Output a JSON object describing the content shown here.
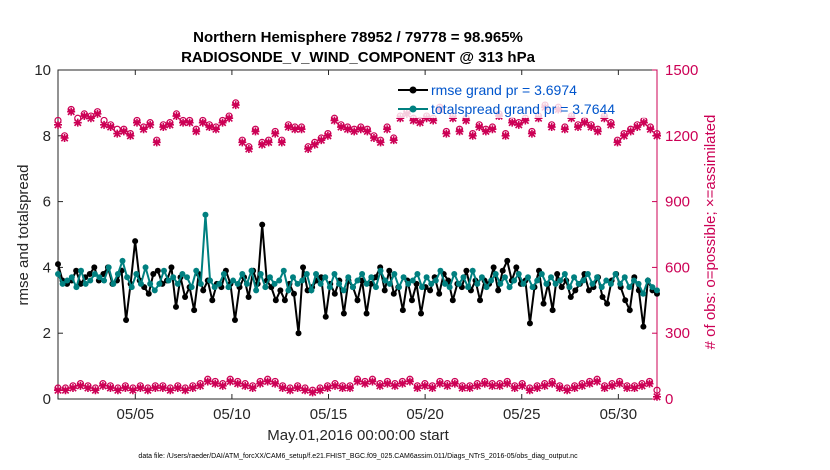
{
  "chart_data": {
    "type": "line",
    "title_line1": "Northern Hemisphere 78952 / 79778 = 98.965%",
    "title_line2": "RADIOSONDE_V_WIND_COMPONENT @ 313 hPa",
    "xlabel": "May.01,2016 00:00:00 start",
    "ylabel_left": "rmse and totalspread",
    "ylabel_right": "# of obs: o=possible; ×=assimilated",
    "xlim": [
      1,
      32
    ],
    "ylim_left": [
      0,
      10
    ],
    "ylim_right": [
      0,
      1500
    ],
    "x_ticks": [
      {
        "value": 5,
        "label": "05/05"
      },
      {
        "value": 10,
        "label": "05/10"
      },
      {
        "value": 15,
        "label": "05/15"
      },
      {
        "value": 20,
        "label": "05/20"
      },
      {
        "value": 25,
        "label": "05/25"
      },
      {
        "value": 30,
        "label": "05/30"
      }
    ],
    "y_ticks_left": [
      {
        "value": 0,
        "label": "0"
      },
      {
        "value": 2,
        "label": "2"
      },
      {
        "value": 4,
        "label": "4"
      },
      {
        "value": 6,
        "label": "6"
      },
      {
        "value": 8,
        "label": "8"
      },
      {
        "value": 10,
        "label": "10"
      }
    ],
    "y_ticks_right": [
      {
        "value": 0,
        "label": "0"
      },
      {
        "value": 300,
        "label": "300"
      },
      {
        "value": 600,
        "label": "600"
      },
      {
        "value": 900,
        "label": "900"
      },
      {
        "value": 1200,
        "label": "1200"
      },
      {
        "value": 1500,
        "label": "1500"
      }
    ],
    "legend": [
      {
        "label": "rmse grand pr = 3.6974",
        "color": "#000000"
      },
      {
        "label": "totalspread grand pr = 3.7644",
        "color": "#008080"
      }
    ],
    "rmse": [
      4.1,
      3.6,
      3.5,
      3.6,
      3.9,
      3.5,
      3.7,
      3.8,
      4.0,
      3.6,
      3.8,
      4.0,
      3.5,
      3.6,
      3.9,
      2.4,
      3.5,
      4.8,
      3.6,
      3.4,
      3.2,
      3.8,
      3.9,
      3.5,
      3.6,
      4.0,
      2.8,
      3.7,
      3.1,
      3.4,
      2.7,
      3.8,
      3.3,
      3.6,
      3.0,
      3.5,
      3.4,
      3.9,
      3.5,
      2.4,
      3.4,
      3.7,
      3.1,
      3.9,
      3.5,
      5.3,
      3.6,
      3.4,
      3.0,
      3.3,
      3.0,
      3.5,
      3.2,
      2.0,
      4.0,
      3.3,
      3.4,
      3.6,
      3.7,
      2.5,
      3.5,
      3.2,
      3.6,
      2.6,
      3.6,
      3.4,
      3.0,
      3.6,
      2.6,
      3.5,
      3.7,
      4.0,
      3.3,
      3.9,
      3.2,
      3.4,
      2.7,
      3.6,
      3.0,
      3.5,
      2.6,
      3.4,
      3.3,
      3.7,
      3.2,
      3.8,
      3.6,
      3.0,
      3.5,
      3.4,
      3.9,
      3.3,
      3.6,
      3.0,
      3.6,
      3.5,
      4.0,
      3.3,
      3.9,
      4.2,
      3.6,
      4.0,
      3.5,
      3.6,
      2.3,
      3.4,
      3.9,
      2.9,
      3.5,
      2.7,
      3.8,
      3.4,
      3.6,
      3.1,
      3.3,
      3.5,
      3.8,
      3.3,
      3.4,
      3.7,
      3.1,
      2.9,
      3.6,
      3.8,
      3.4,
      3.0,
      2.7,
      3.7,
      3.3,
      2.2,
      3.6,
      3.3,
      3.2
    ],
    "totalspread": [
      3.8,
      3.5,
      3.6,
      3.7,
      3.4,
      3.9,
      3.5,
      3.6,
      3.8,
      3.7,
      3.6,
      4.0,
      3.5,
      3.8,
      4.2,
      3.7,
      3.4,
      3.8,
      3.5,
      4.0,
      3.5,
      3.3,
      3.5,
      3.9,
      3.6,
      3.7,
      3.5,
      3.8,
      3.7,
      3.4,
      3.9,
      3.5,
      5.6,
      3.6,
      3.4,
      3.5,
      3.8,
      3.4,
      3.6,
      3.5,
      3.8,
      3.5,
      3.9,
      3.3,
      3.8,
      3.4,
      3.7,
      3.5,
      3.6,
      3.9,
      3.3,
      3.7,
      3.5,
      3.6,
      3.8,
      3.3,
      3.8,
      3.5,
      3.7,
      3.4,
      3.8,
      3.5,
      3.3,
      3.7,
      3.4,
      3.6,
      3.8,
      3.5,
      3.7,
      3.4,
      3.9,
      3.6,
      3.5,
      3.8,
      3.4,
      3.7,
      3.5,
      3.6,
      3.8,
      3.4,
      3.7,
      3.5,
      3.6,
      3.9,
      3.5,
      3.4,
      3.8,
      3.5,
      3.7,
      3.4,
      3.9,
      3.5,
      3.7,
      3.4,
      3.6,
      3.8,
      3.5,
      3.7,
      3.4,
      3.6,
      3.8,
      3.5,
      3.7,
      3.4,
      3.6,
      3.8,
      3.5,
      3.7,
      3.5,
      3.6,
      3.8,
      3.4,
      3.7,
      3.5,
      3.6,
      3.8,
      3.5,
      3.7,
      3.4,
      3.6,
      3.5,
      3.8,
      3.5,
      3.7,
      3.4,
      3.6,
      3.5,
      3.2,
      3.6,
      3.4,
      3.3
    ],
    "obs_possible_high": [
      1270,
      1200,
      1320,
      1280,
      1300,
      1290,
      1310,
      1270,
      1250,
      1230,
      1230,
      1210,
      1270,
      1240,
      1260,
      1180,
      1250,
      1260,
      1300,
      1270,
      1270,
      1230,
      1270,
      1250,
      1240,
      1270,
      1290,
      1350,
      1180,
      1150,
      1230,
      1170,
      1180,
      1220,
      1180,
      1250,
      1240,
      1240,
      1150,
      1170,
      1190,
      1210,
      1280,
      1250,
      1240,
      1230,
      1240,
      1230,
      1200,
      1180,
      1240,
      1190,
      1290,
      1310,
      1280,
      1270,
      1290,
      1280,
      1330,
      1220,
      1290,
      1230,
      1280,
      1210,
      1250,
      1230,
      1240,
      1300,
      1210,
      1270,
      1260,
      1280,
      1220,
      1290,
      1340,
      1250,
      1330,
      1240,
      1290,
      1250,
      1270,
      1250,
      1230,
      1290,
      1260,
      1180,
      1210,
      1230,
      1250,
      1270,
      1240,
      1210
    ],
    "obs_assimilated_high": [
      1250,
      1190,
      1310,
      1260,
      1290,
      1280,
      1300,
      1250,
      1240,
      1210,
      1220,
      1200,
      1260,
      1230,
      1250,
      1170,
      1240,
      1250,
      1290,
      1260,
      1260,
      1220,
      1260,
      1240,
      1230,
      1260,
      1280,
      1340,
      1170,
      1140,
      1220,
      1160,
      1170,
      1210,
      1170,
      1240,
      1230,
      1230,
      1140,
      1160,
      1180,
      1200,
      1270,
      1240,
      1230,
      1220,
      1230,
      1220,
      1190,
      1170,
      1230,
      1180,
      1280,
      1300,
      1270,
      1260,
      1280,
      1270,
      1320,
      1210,
      1280,
      1220,
      1270,
      1200,
      1240,
      1220,
      1230,
      1290,
      1200,
      1260,
      1250,
      1270,
      1210,
      1280,
      1330,
      1240,
      1320,
      1230,
      1280,
      1240,
      1260,
      1240,
      1220,
      1280,
      1250,
      1170,
      1200,
      1220,
      1240,
      1260,
      1230,
      1200
    ],
    "obs_possible_low": [
      50,
      50,
      60,
      70,
      60,
      50,
      70,
      60,
      50,
      60,
      50,
      60,
      50,
      60,
      60,
      50,
      60,
      50,
      60,
      70,
      90,
      80,
      70,
      90,
      80,
      70,
      60,
      80,
      90,
      80,
      60,
      50,
      60,
      50,
      40,
      50,
      60,
      70,
      60,
      60,
      90,
      80,
      90,
      70,
      80,
      70,
      80,
      90,
      60,
      70,
      60,
      80,
      70,
      80,
      60,
      60,
      70,
      80,
      70,
      70,
      80,
      60,
      70,
      50,
      60,
      70,
      80,
      60,
      50,
      60,
      70,
      80,
      90,
      60,
      70,
      80,
      60,
      60,
      70,
      80,
      40
    ],
    "obs_assimilated_low": [
      40,
      40,
      50,
      60,
      50,
      40,
      60,
      50,
      40,
      50,
      40,
      50,
      40,
      50,
      50,
      40,
      50,
      40,
      50,
      60,
      80,
      70,
      60,
      80,
      70,
      60,
      50,
      70,
      80,
      70,
      50,
      40,
      50,
      40,
      30,
      40,
      50,
      60,
      50,
      50,
      80,
      70,
      80,
      60,
      70,
      60,
      70,
      80,
      50,
      60,
      50,
      70,
      60,
      70,
      50,
      50,
      60,
      70,
      60,
      60,
      70,
      50,
      60,
      40,
      50,
      60,
      70,
      50,
      40,
      50,
      60,
      70,
      80,
      50,
      60,
      70,
      50,
      50,
      60,
      70,
      10
    ],
    "footnote": "data file: /Users/raeder/DAI/ATM_forcXX/CAM6_setup/f.e21.FHIST_BGC.f09_025.CAM6assim.011/Diags_NTrS_2016-05/obs_diag_output.nc"
  }
}
